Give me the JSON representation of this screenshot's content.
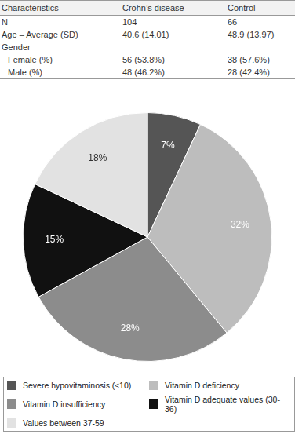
{
  "table": {
    "header": [
      "Characteristics",
      "Crohn’s disease",
      "Control"
    ],
    "rows": [
      [
        "N",
        "104",
        "66"
      ],
      [
        "Age – Average (SD)",
        "40.6 (14.01)",
        "48.9 (13.97)"
      ],
      [
        "Gender"
      ],
      [
        "Female (%)",
        "56 (53.8%)",
        "38 (57.6%)"
      ],
      [
        "Male (%)",
        "48 (46.2%)",
        "28 (42.4%)"
      ]
    ]
  },
  "chart_data": {
    "type": "pie",
    "categories": [
      "Severe hypovitaminosis (≤10)",
      "Vitamin D deficiency",
      "Vitamin D insufficiency",
      "Vitamin D adequate values (30-36)",
      "Values between 37-59"
    ],
    "values": [
      7,
      32,
      28,
      15,
      18
    ],
    "value_labels": [
      "7%",
      "32%",
      "28%",
      "15%",
      "18%"
    ],
    "colors": [
      "#555555",
      "#bdbdbd",
      "#8c8c8c",
      "#111111",
      "#e2e2e2"
    ],
    "data_labels": true,
    "legend": "bottom"
  }
}
